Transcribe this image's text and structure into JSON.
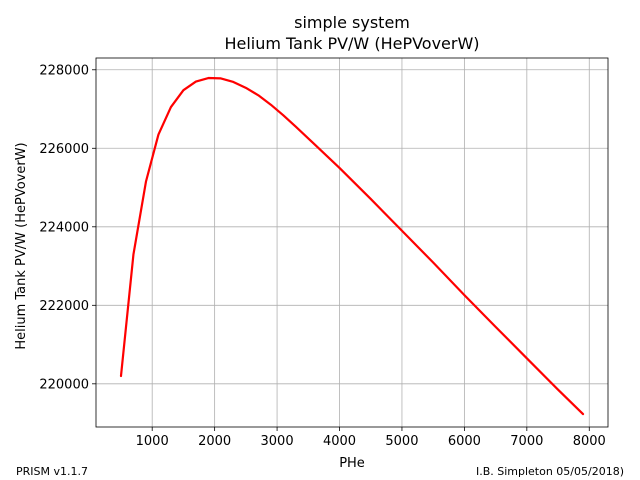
{
  "chart_data": {
    "type": "line",
    "title": "simple system",
    "subtitle": "Helium Tank PV/W (HePVoverW)",
    "xlabel": "PHe",
    "ylabel": "Helium Tank PV/W (HePVoverW)",
    "xlim": [
      100,
      8300
    ],
    "ylim": [
      218900,
      228300
    ],
    "xticks": [
      1000,
      2000,
      3000,
      4000,
      5000,
      6000,
      7000,
      8000
    ],
    "yticks": [
      220000,
      222000,
      224000,
      226000,
      228000
    ],
    "grid": true,
    "series": [
      {
        "color": "#ff0000",
        "x": [
          500,
          700,
          900,
          1100,
          1300,
          1500,
          1700,
          1900,
          2100,
          2300,
          2500,
          2700,
          2900,
          3100,
          3300,
          3600,
          4000,
          4500,
          5000,
          5500,
          6000,
          6500,
          7000,
          7500,
          7900
        ],
        "y": [
          220200,
          223300,
          225150,
          226350,
          227050,
          227480,
          227700,
          227790,
          227780,
          227690,
          227540,
          227350,
          227110,
          226840,
          226550,
          226100,
          225500,
          224710,
          223900,
          223090,
          222260,
          221450,
          220650,
          219850,
          219230
        ]
      }
    ]
  },
  "footer": {
    "left": "PRISM v1.1.7",
    "right": "I.B. Simpleton 05/05/2018)"
  }
}
